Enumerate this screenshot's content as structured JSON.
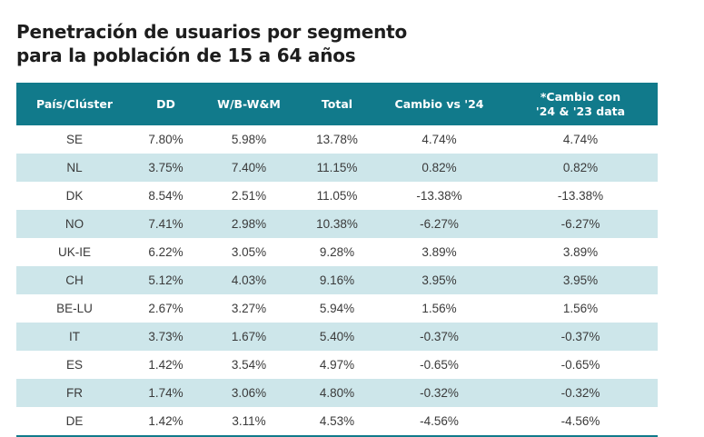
{
  "title": {
    "line1": "Penetración de usuarios por segmento",
    "line2": "para la población de 15 a 64 años"
  },
  "table": {
    "headers": {
      "country": "País/Clúster",
      "dd": "DD",
      "wb": "W/B-W&M",
      "total": "Total",
      "change": "Cambio vs '24",
      "change2_line1": "*Cambio con",
      "change2_line2": "'24 & '23 data"
    },
    "rows": [
      {
        "country": "SE",
        "dd": "7.80%",
        "wb": "5.98%",
        "total": "13.78%",
        "change": "4.74%",
        "change2": "4.74%"
      },
      {
        "country": "NL",
        "dd": "3.75%",
        "wb": "7.40%",
        "total": "11.15%",
        "change": "0.82%",
        "change2": "0.82%"
      },
      {
        "country": "DK",
        "dd": "8.54%",
        "wb": "2.51%",
        "total": "11.05%",
        "change": "-13.38%",
        "change2": "-13.38%"
      },
      {
        "country": "NO",
        "dd": "7.41%",
        "wb": "2.98%",
        "total": "10.38%",
        "change": "-6.27%",
        "change2": "-6.27%"
      },
      {
        "country": "UK-IE",
        "dd": "6.22%",
        "wb": "3.05%",
        "total": "9.28%",
        "change": "3.89%",
        "change2": "3.89%"
      },
      {
        "country": "CH",
        "dd": "5.12%",
        "wb": "4.03%",
        "total": "9.16%",
        "change": "3.95%",
        "change2": "3.95%"
      },
      {
        "country": "BE-LU",
        "dd": "2.67%",
        "wb": "3.27%",
        "total": "5.94%",
        "change": "1.56%",
        "change2": "1.56%"
      },
      {
        "country": "IT",
        "dd": "3.73%",
        "wb": "1.67%",
        "total": "5.40%",
        "change": "-0.37%",
        "change2": "-0.37%"
      },
      {
        "country": "ES",
        "dd": "1.42%",
        "wb": "3.54%",
        "total": "4.97%",
        "change": "-0.65%",
        "change2": "-0.65%"
      },
      {
        "country": "FR",
        "dd": "1.74%",
        "wb": "3.06%",
        "total": "4.80%",
        "change": "-0.32%",
        "change2": "-0.32%"
      },
      {
        "country": "DE",
        "dd": "1.42%",
        "wb": "3.11%",
        "total": "4.53%",
        "change": "-4.56%",
        "change2": "-4.56%"
      }
    ]
  },
  "colors": {
    "header_bg": "#117a8b",
    "stripe_bg": "#cde6ea"
  }
}
